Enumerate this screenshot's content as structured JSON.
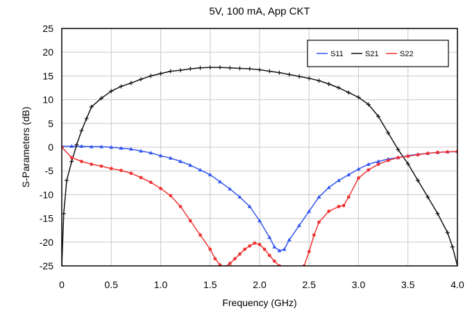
{
  "chart_data": {
    "type": "line",
    "title": "5V, 100 mA, App CKT",
    "xlabel": "Frequency (GHz)",
    "ylabel": "S-Parameters (dB)",
    "xlim": [
      0,
      4.0
    ],
    "ylim": [
      -25,
      25
    ],
    "xticks": [
      "0",
      "0.5",
      "1.0",
      "1.5",
      "2.0",
      "2.5",
      "3.0",
      "3.5",
      "4.0"
    ],
    "yticks": [
      "25",
      "20",
      "15",
      "10",
      "5",
      "0",
      "-5",
      "-10",
      "-15",
      "-20",
      "-25"
    ],
    "grid": true,
    "legend_position": "top-right",
    "series": [
      {
        "name": "S11",
        "color": "#3355ee",
        "x": [
          0,
          0.1,
          0.2,
          0.3,
          0.4,
          0.5,
          0.6,
          0.7,
          0.8,
          0.9,
          1.0,
          1.1,
          1.2,
          1.3,
          1.4,
          1.5,
          1.6,
          1.7,
          1.8,
          1.9,
          2.0,
          2.1,
          2.15,
          2.2,
          2.25,
          2.3,
          2.4,
          2.5,
          2.6,
          2.7,
          2.8,
          2.9,
          3.0,
          3.1,
          3.2,
          3.3,
          3.4,
          3.5,
          3.6,
          3.7,
          3.8,
          3.9,
          4.0
        ],
        "y": [
          0.2,
          0.2,
          0.2,
          0.1,
          0.1,
          0,
          -0.2,
          -0.4,
          -0.8,
          -1.2,
          -1.8,
          -2.3,
          -3.0,
          -3.8,
          -4.8,
          -5.8,
          -7.3,
          -8.8,
          -10.5,
          -12.5,
          -15.5,
          -19.0,
          -21.0,
          -21.8,
          -21.5,
          -19.5,
          -16.5,
          -13.5,
          -10.5,
          -8.5,
          -7.0,
          -5.8,
          -4.6,
          -3.6,
          -3.0,
          -2.5,
          -2.2,
          -1.8,
          -1.5,
          -1.3,
          -1.1,
          -1.0,
          -0.9
        ]
      },
      {
        "name": "S21",
        "color": "#111111",
        "x": [
          0,
          0.02,
          0.05,
          0.1,
          0.15,
          0.2,
          0.25,
          0.3,
          0.4,
          0.5,
          0.6,
          0.7,
          0.8,
          0.9,
          1.0,
          1.1,
          1.2,
          1.3,
          1.4,
          1.5,
          1.6,
          1.7,
          1.8,
          1.9,
          2.0,
          2.1,
          2.2,
          2.3,
          2.4,
          2.5,
          2.6,
          2.7,
          2.8,
          2.9,
          3.0,
          3.1,
          3.2,
          3.3,
          3.4,
          3.5,
          3.6,
          3.7,
          3.8,
          3.9,
          3.95,
          4.0
        ],
        "y": [
          -25,
          -14,
          -7,
          -3,
          0.5,
          3.5,
          6,
          8.5,
          10.3,
          11.8,
          12.8,
          13.5,
          14.3,
          15.0,
          15.5,
          16.0,
          16.2,
          16.5,
          16.7,
          16.8,
          16.8,
          16.7,
          16.6,
          16.5,
          16.3,
          16.0,
          15.7,
          15.3,
          14.9,
          14.5,
          14.0,
          13.3,
          12.5,
          11.5,
          10.5,
          9.0,
          6.5,
          3.0,
          -0.5,
          -3.5,
          -7.0,
          -10.5,
          -14.0,
          -18.0,
          -21.0,
          -25
        ]
      },
      {
        "name": "S22",
        "color": "#ee3333",
        "x": [
          0,
          0.1,
          0.2,
          0.3,
          0.4,
          0.5,
          0.6,
          0.7,
          0.8,
          0.9,
          1.0,
          1.1,
          1.2,
          1.3,
          1.4,
          1.5,
          1.55,
          1.6,
          1.65,
          1.7,
          1.75,
          1.8,
          1.85,
          1.9,
          1.95,
          2.0,
          2.05,
          2.1,
          2.15,
          2.2,
          2.25,
          2.3,
          2.35,
          2.4,
          2.45,
          2.5,
          2.55,
          2.6,
          2.7,
          2.8,
          2.85,
          2.9,
          3.0,
          3.1,
          3.2,
          3.3,
          3.4,
          3.5,
          3.6,
          3.7,
          3.8,
          3.9,
          4.0
        ],
        "y": [
          0,
          -2.2,
          -3.0,
          -3.6,
          -4.0,
          -4.5,
          -4.9,
          -5.5,
          -6.4,
          -7.4,
          -8.7,
          -10.2,
          -12.5,
          -15.5,
          -18.5,
          -21.5,
          -23.5,
          -24.8,
          -25.2,
          -24.5,
          -23.5,
          -22.5,
          -21.5,
          -20.8,
          -20.2,
          -20.5,
          -21.5,
          -22.8,
          -24.0,
          -25.0,
          -26.0,
          -26.8,
          -26.8,
          -26.3,
          -25.0,
          -22.0,
          -18.5,
          -15.8,
          -13.5,
          -12.5,
          -12.3,
          -10.5,
          -6.5,
          -4.8,
          -3.6,
          -2.8,
          -2.2,
          -1.9,
          -1.6,
          -1.3,
          -1.1,
          -1.0,
          -0.9
        ]
      }
    ]
  }
}
